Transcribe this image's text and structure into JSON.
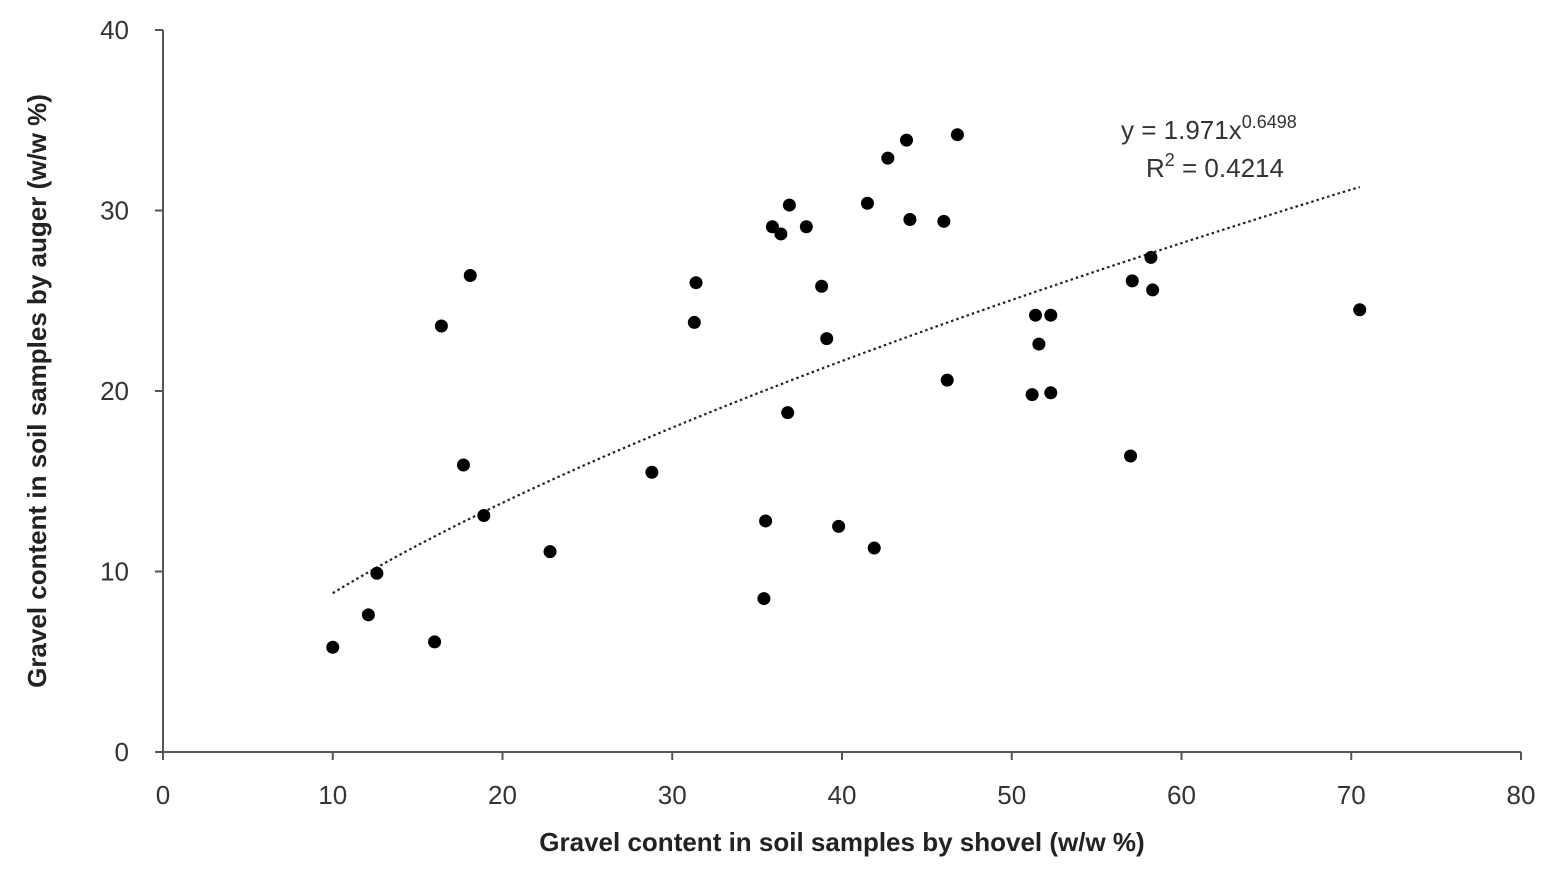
{
  "chart_data": {
    "type": "scatter",
    "title": "",
    "xlabel": "Gravel content in soil samples by shovel (w/w %)",
    "ylabel": "Gravel content in soil samples by auger (w/w %)",
    "xlim": [
      0,
      80
    ],
    "ylim": [
      0,
      40
    ],
    "xticks": [
      "0",
      "10",
      "20",
      "30",
      "40",
      "50",
      "60",
      "70",
      "80"
    ],
    "yticks": [
      "0",
      "10",
      "20",
      "30",
      "40"
    ],
    "grid": false,
    "legend": "none",
    "marker_color": "#000000",
    "trendline": {
      "type": "power",
      "coefficient": 1.971,
      "exponent": 0.6498,
      "x_range": [
        10,
        70.5
      ],
      "style": "dotted",
      "equation_prefix": "y = 1.971x",
      "equation_exponent": "0.6498",
      "r2_prefix": "R",
      "r2_superscript": "2",
      "r2_value": " = 0.4214"
    },
    "points": [
      {
        "x": 10.0,
        "y": 5.8
      },
      {
        "x": 12.1,
        "y": 7.6
      },
      {
        "x": 12.6,
        "y": 9.9
      },
      {
        "x": 16.0,
        "y": 6.1
      },
      {
        "x": 16.4,
        "y": 23.6
      },
      {
        "x": 17.7,
        "y": 15.9
      },
      {
        "x": 18.1,
        "y": 26.4
      },
      {
        "x": 18.9,
        "y": 13.1
      },
      {
        "x": 22.8,
        "y": 11.1
      },
      {
        "x": 28.8,
        "y": 15.5
      },
      {
        "x": 31.3,
        "y": 23.8
      },
      {
        "x": 31.4,
        "y": 26.0
      },
      {
        "x": 35.4,
        "y": 8.5
      },
      {
        "x": 35.5,
        "y": 12.8
      },
      {
        "x": 35.9,
        "y": 29.1
      },
      {
        "x": 36.4,
        "y": 28.7
      },
      {
        "x": 36.8,
        "y": 18.8
      },
      {
        "x": 36.9,
        "y": 30.3
      },
      {
        "x": 37.9,
        "y": 29.1
      },
      {
        "x": 38.8,
        "y": 25.8
      },
      {
        "x": 39.1,
        "y": 22.9
      },
      {
        "x": 39.8,
        "y": 12.5
      },
      {
        "x": 41.5,
        "y": 30.4
      },
      {
        "x": 41.9,
        "y": 11.3
      },
      {
        "x": 42.7,
        "y": 32.9
      },
      {
        "x": 43.8,
        "y": 33.9
      },
      {
        "x": 44.0,
        "y": 29.5
      },
      {
        "x": 46.0,
        "y": 29.4
      },
      {
        "x": 46.2,
        "y": 20.6
      },
      {
        "x": 46.8,
        "y": 34.2
      },
      {
        "x": 51.2,
        "y": 19.8
      },
      {
        "x": 51.4,
        "y": 24.2
      },
      {
        "x": 51.6,
        "y": 22.6
      },
      {
        "x": 52.3,
        "y": 24.2
      },
      {
        "x": 52.3,
        "y": 19.9
      },
      {
        "x": 57.0,
        "y": 16.4
      },
      {
        "x": 57.1,
        "y": 26.1
      },
      {
        "x": 58.2,
        "y": 27.4
      },
      {
        "x": 58.3,
        "y": 25.6
      },
      {
        "x": 70.5,
        "y": 24.5
      }
    ]
  }
}
